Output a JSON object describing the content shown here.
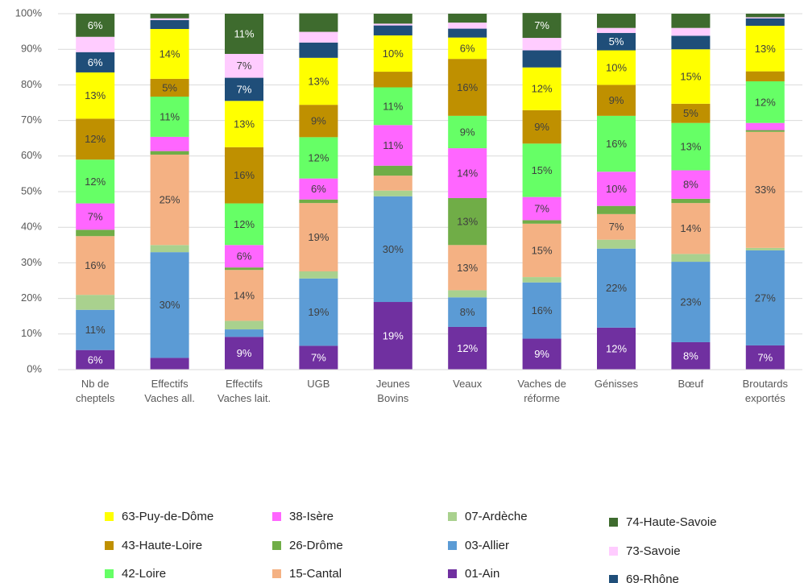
{
  "chart_data": {
    "type": "stacked_bar_percent",
    "categories": [
      "Nb de cheptels",
      "Effectifs Vaches all.",
      "Effectifs Vaches lait.",
      "UGB",
      "Jeunes Bovins",
      "Veaux",
      "Vaches de réforme",
      "Génisses",
      "Bœuf",
      "Broutards exportés"
    ],
    "ylim": [
      0,
      100
    ],
    "yticks": [
      {
        "value": 0,
        "label": "0%"
      },
      {
        "value": 10,
        "label": "10%"
      },
      {
        "value": 20,
        "label": "20%"
      },
      {
        "value": 30,
        "label": "30%"
      },
      {
        "value": 40,
        "label": "40%"
      },
      {
        "value": 50,
        "label": "50%"
      },
      {
        "value": 60,
        "label": "60%"
      },
      {
        "value": 70,
        "label": "70%"
      },
      {
        "value": 80,
        "label": "80%"
      },
      {
        "value": 90,
        "label": "90%"
      },
      {
        "value": 100,
        "label": "100%"
      }
    ],
    "grid": true,
    "series": [
      {
        "name": "01-Ain",
        "color": "#7030a0",
        "values": [
          5.5,
          3.3,
          9.2,
          6.7,
          19,
          12,
          8.7,
          11.8,
          7.7,
          6.8
        ],
        "value_labels": [
          "6%",
          null,
          "9%",
          "7%",
          "19%",
          "12%",
          "9%",
          "12%",
          "8%",
          "7%"
        ]
      },
      {
        "name": "03-Allier",
        "color": "#5b9bd5",
        "values": [
          11.3,
          29.7,
          2.1,
          18.9,
          29.7,
          8.3,
          15.8,
          22.2,
          22.6,
          26.7
        ],
        "value_labels": [
          "11%",
          "30%",
          null,
          "19%",
          "30%",
          "8%",
          "16%",
          "22%",
          "23%",
          "27%"
        ]
      },
      {
        "name": "07-Ardèche",
        "color": "#a9d18e",
        "values": [
          4.2,
          2,
          2.4,
          2,
          1.6,
          2,
          1.5,
          2.5,
          2.2,
          0.7
        ],
        "value_labels": [
          null,
          null,
          null,
          null,
          null,
          null,
          null,
          null,
          null,
          null
        ]
      },
      {
        "name": "15-Cantal",
        "color": "#f4b183",
        "values": [
          16.5,
          25.4,
          14.3,
          19.2,
          4.2,
          12.7,
          15,
          7.2,
          14.3,
          32.6
        ],
        "value_labels": [
          "16%",
          "25%",
          "14%",
          "19%",
          null,
          "13%",
          "15%",
          "7%",
          "14%",
          "33%"
        ]
      },
      {
        "name": "26-Drôme",
        "color": "#70ad47",
        "values": [
          1.8,
          1,
          0.7,
          1,
          2.8,
          13.2,
          1,
          2.3,
          1.2,
          0.5
        ],
        "value_labels": [
          null,
          null,
          null,
          null,
          null,
          "13%",
          null,
          null,
          null,
          null
        ]
      },
      {
        "name": "38-Isère",
        "color": "#ff66ff",
        "values": [
          7.4,
          4,
          6.3,
          5.9,
          11.4,
          14,
          6.5,
          9.6,
          8,
          2
        ],
        "value_labels": [
          "7%",
          null,
          "6%",
          "6%",
          "11%",
          "14%",
          "7%",
          "10%",
          "8%",
          null
        ]
      },
      {
        "name": "42-Loire",
        "color": "#66ff66",
        "values": [
          12.3,
          11.3,
          11.7,
          11.6,
          10.6,
          9.1,
          15,
          15.7,
          13.3,
          11.7
        ],
        "value_labels": [
          "12%",
          "11%",
          "12%",
          "12%",
          "11%",
          "9%",
          "15%",
          "16%",
          "13%",
          "12%"
        ]
      },
      {
        "name": "43-Haute-Loire",
        "color": "#bf9000",
        "values": [
          11.5,
          5,
          15.8,
          9.1,
          4.4,
          16,
          9.4,
          8.7,
          5.4,
          2.8
        ],
        "value_labels": [
          "12%",
          "5%",
          "16%",
          "9%",
          null,
          "16%",
          "9%",
          "9%",
          "5%",
          null
        ]
      },
      {
        "name": "63-Puy-de-Dôme",
        "color": "#ffff00",
        "values": [
          13,
          14,
          13,
          13.2,
          10.2,
          6,
          12,
          9.7,
          15.3,
          12.8
        ],
        "value_labels": [
          "13%",
          "14%",
          "13%",
          "13%",
          "10%",
          "6%",
          "12%",
          "10%",
          "15%",
          "13%"
        ]
      },
      {
        "name": "69-Rhône",
        "color": "#1f4e79",
        "values": [
          5.7,
          2.5,
          6.5,
          4.3,
          2.8,
          2.5,
          4.8,
          4.9,
          3.8,
          2.1
        ],
        "value_labels": [
          "6%",
          null,
          "7%",
          null,
          null,
          null,
          null,
          "5%",
          null,
          null
        ]
      },
      {
        "name": "73-Savoie",
        "color": "#ffccff",
        "values": [
          4.3,
          0.5,
          6.7,
          3,
          0.5,
          1.7,
          3.5,
          1.4,
          2.2,
          0.3
        ],
        "value_labels": [
          null,
          null,
          "7%",
          null,
          null,
          null,
          null,
          null,
          null,
          null
        ]
      },
      {
        "name": "74-Haute-Savoie",
        "color": "#3e6b2e",
        "values": [
          6.5,
          1.3,
          11.3,
          5.2,
          2.8,
          2.5,
          7,
          4,
          4,
          1
        ],
        "value_labels": [
          "6%",
          null,
          "11%",
          null,
          null,
          null,
          "7%",
          null,
          null,
          null
        ]
      }
    ]
  }
}
